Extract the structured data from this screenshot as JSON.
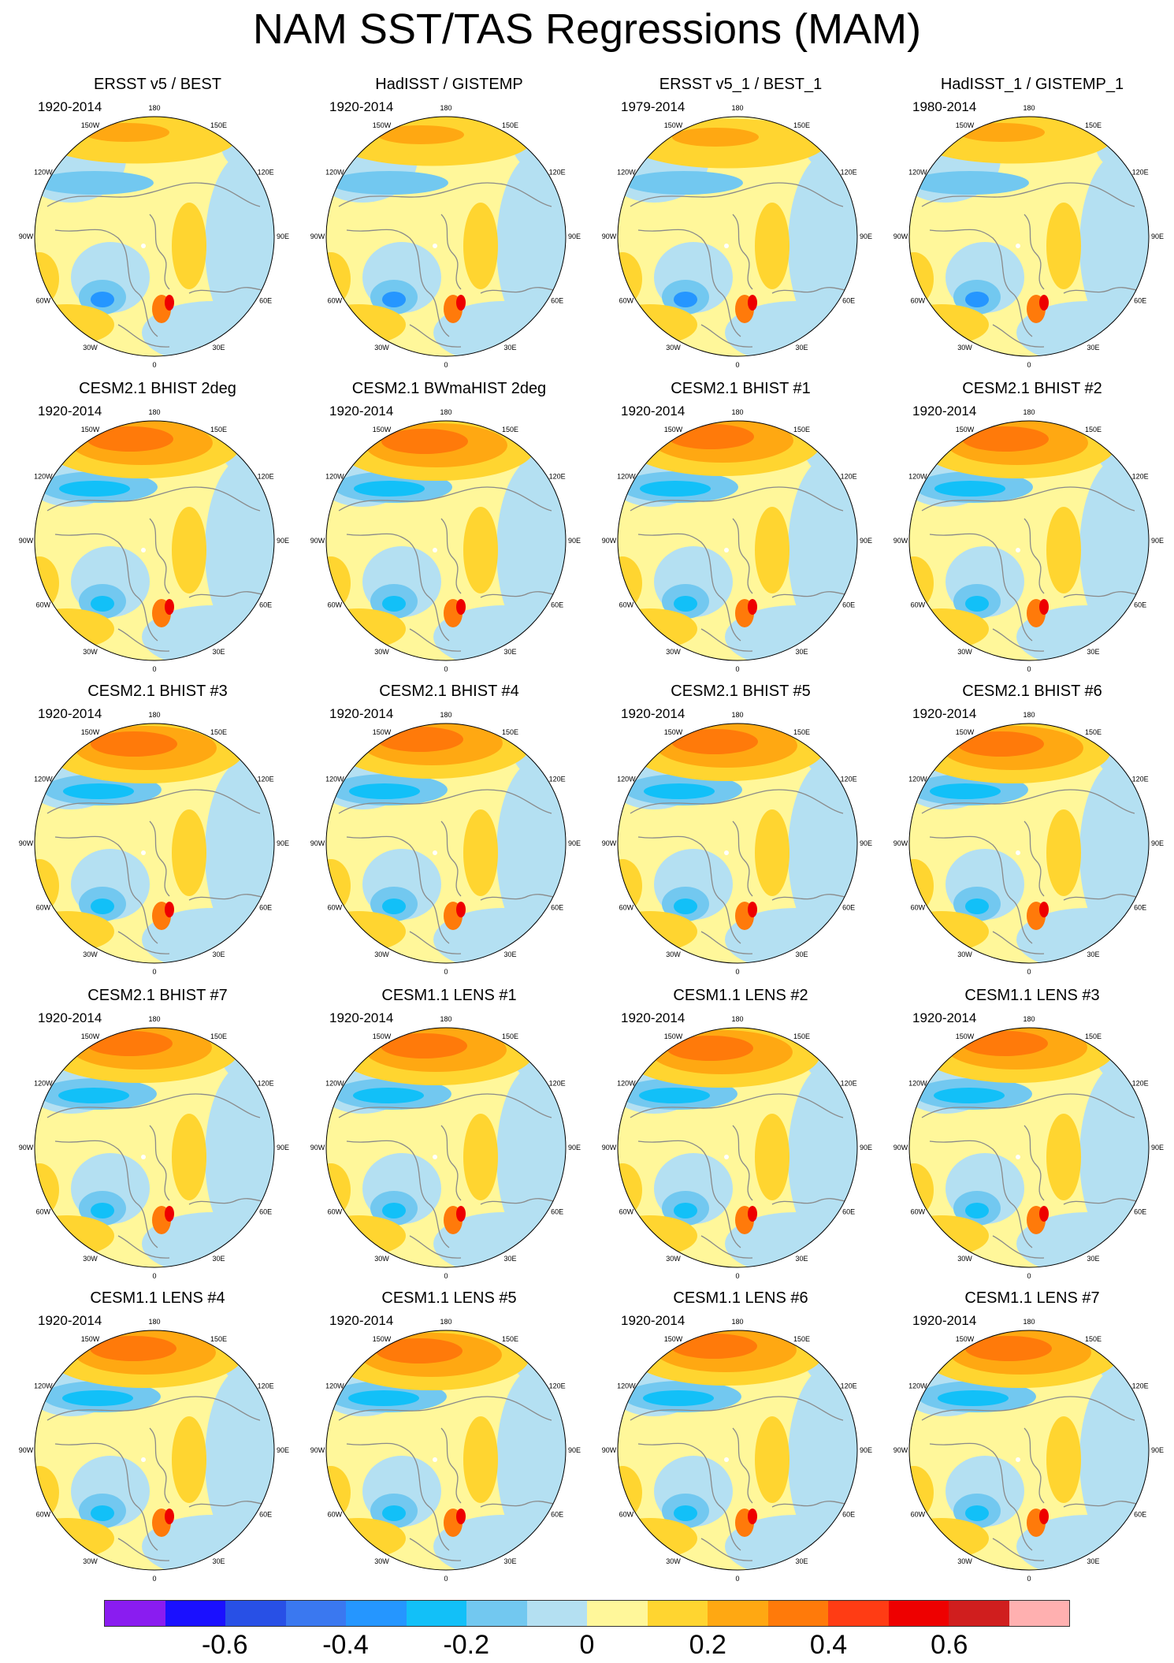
{
  "title": "NAM SST/TAS Regressions (MAM)",
  "longitude_labels": [
    "180",
    "150E",
    "120E",
    "90E",
    "60E",
    "30E",
    "0",
    "30W",
    "60W",
    "90W",
    "120W",
    "150W"
  ],
  "panels": [
    {
      "title": "ERSST v5 / BEST",
      "period": "1920-2014"
    },
    {
      "title": "HadISST / GISTEMP",
      "period": "1920-2014"
    },
    {
      "title": "ERSST v5_1 / BEST_1",
      "period": "1979-2014"
    },
    {
      "title": "HadISST_1 / GISTEMP_1",
      "period": "1980-2014"
    },
    {
      "title": "CESM2.1 BHIST 2deg",
      "period": "1920-2014"
    },
    {
      "title": "CESM2.1 BWmaHIST 2deg",
      "period": "1920-2014"
    },
    {
      "title": "CESM2.1 BHIST #1",
      "period": "1920-2014"
    },
    {
      "title": "CESM2.1 BHIST #2",
      "period": "1920-2014"
    },
    {
      "title": "CESM2.1 BHIST #3",
      "period": "1920-2014"
    },
    {
      "title": "CESM2.1 BHIST #4",
      "period": "1920-2014"
    },
    {
      "title": "CESM2.1 BHIST #5",
      "period": "1920-2014"
    },
    {
      "title": "CESM2.1 BHIST #6",
      "period": "1920-2014"
    },
    {
      "title": "CESM2.1 BHIST #7",
      "period": "1920-2014"
    },
    {
      "title": "CESM1.1 LENS #1",
      "period": "1920-2014"
    },
    {
      "title": "CESM1.1 LENS #2",
      "period": "1920-2014"
    },
    {
      "title": "CESM1.1 LENS #3",
      "period": "1920-2014"
    },
    {
      "title": "CESM1.1 LENS #4",
      "period": "1920-2014"
    },
    {
      "title": "CESM1.1 LENS #5",
      "period": "1920-2014"
    },
    {
      "title": "CESM1.1 LENS #6",
      "period": "1920-2014"
    },
    {
      "title": "CESM1.1 LENS #7",
      "period": "1920-2014"
    }
  ],
  "colorbar": {
    "colors": [
      "#8a1cf0",
      "#1a10ff",
      "#2850e6",
      "#3a78f0",
      "#2596ff",
      "#12c0f8",
      "#72c8f0",
      "#b4e0f2",
      "#fff79a",
      "#ffd530",
      "#ffa812",
      "#ff7a0a",
      "#ff3c14",
      "#ee0000",
      "#d01e1e",
      "#ffb0b0"
    ],
    "tick_labels": [
      "-0.6",
      "-0.4",
      "-0.2",
      "0",
      "0.2",
      "0.4",
      "0.6"
    ],
    "tick_values": [
      -0.6,
      -0.4,
      -0.2,
      0,
      0.2,
      0.4,
      0.6
    ],
    "range": [
      -0.8,
      0.8
    ]
  }
}
